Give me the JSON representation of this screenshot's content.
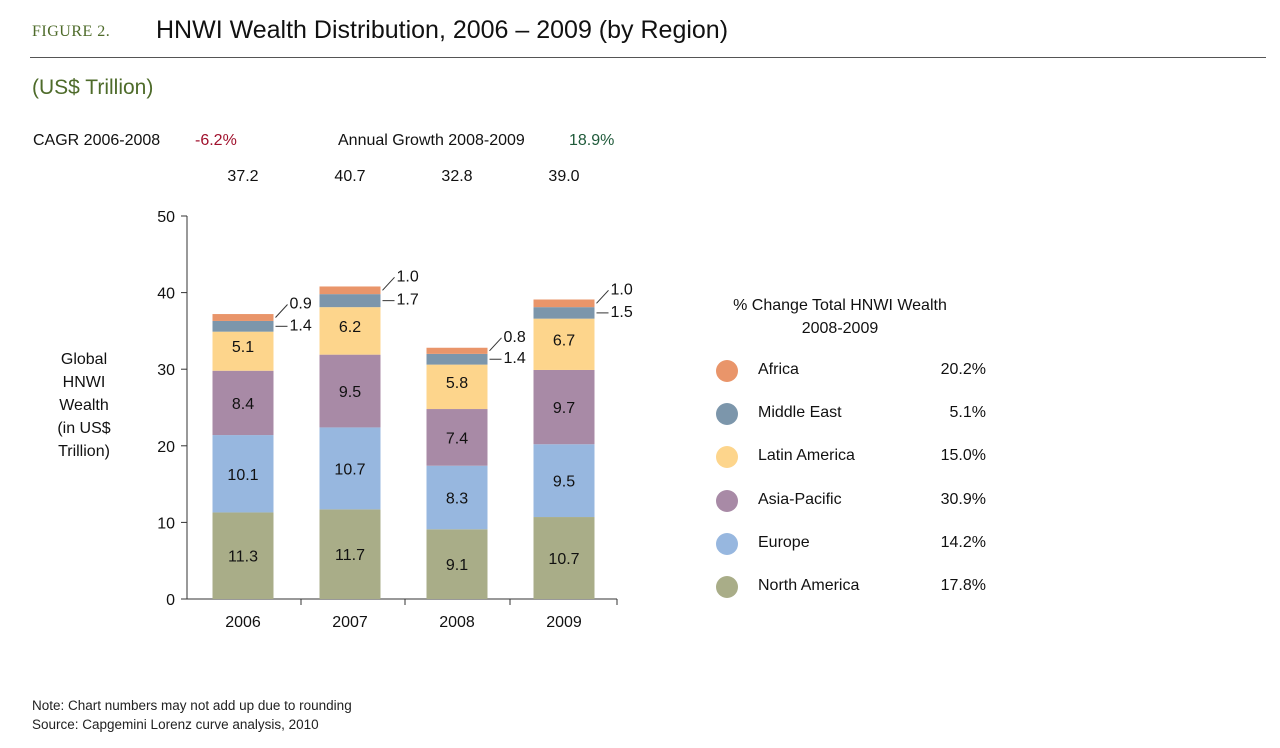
{
  "header": {
    "figure_label": "FIGURE 2.",
    "title": "HNWI Wealth Distribution, 2006 – 2009 (by Region)",
    "units": "(US$ Trillion)"
  },
  "growth": {
    "cagr_label": "CAGR 2006-2008",
    "cagr_value": "-6.2%",
    "annual_label": "Annual Growth  2008-2009",
    "annual_value": "18.9%"
  },
  "legend": {
    "title_line1": "% Change Total HNWI Wealth",
    "title_line2": "2008-2009",
    "items": [
      {
        "name": "Africa",
        "pct": "20.2%"
      },
      {
        "name": "Middle East",
        "pct": "5.1%"
      },
      {
        "name": "Latin America",
        "pct": "15.0%"
      },
      {
        "name": "Asia-Pacific",
        "pct": "30.9%"
      },
      {
        "name": "Europe",
        "pct": "14.2%"
      },
      {
        "name": "North America",
        "pct": "17.8%"
      }
    ]
  },
  "notes": {
    "line1": "Note: Chart numbers may not add up due to rounding",
    "line2": "Source: Capgemini Lorenz curve analysis, 2010"
  },
  "colors": {
    "north_america": "#a9ad88",
    "europe": "#97b7df",
    "asia_pacific": "#a88aa6",
    "latin_america": "#fdd58c",
    "middle_east": "#7c96ab",
    "africa": "#e9956a"
  },
  "chart_data": {
    "type": "bar",
    "stacked": true,
    "title": "HNWI Wealth Distribution, 2006 – 2009 (by Region)",
    "ylabel_lines": [
      "Global",
      "HNWI",
      "Wealth",
      "(in US$",
      "Trillion)"
    ],
    "ylim": [
      0,
      50
    ],
    "yticks": [
      0,
      10,
      20,
      30,
      40,
      50
    ],
    "categories": [
      "2006",
      "2007",
      "2008",
      "2009"
    ],
    "totals": [
      "37.2",
      "40.7",
      "32.8",
      "39.0"
    ],
    "series": [
      {
        "name": "North America",
        "color_key": "north_america",
        "values": [
          11.3,
          11.7,
          9.1,
          10.7
        ]
      },
      {
        "name": "Europe",
        "color_key": "europe",
        "values": [
          10.1,
          10.7,
          8.3,
          9.5
        ]
      },
      {
        "name": "Asia-Pacific",
        "color_key": "asia_pacific",
        "values": [
          8.4,
          9.5,
          7.4,
          9.7
        ]
      },
      {
        "name": "Latin America",
        "color_key": "latin_america",
        "values": [
          5.1,
          6.2,
          5.8,
          6.7
        ]
      },
      {
        "name": "Middle East",
        "color_key": "middle_east",
        "values": [
          1.4,
          1.7,
          1.4,
          1.5
        ]
      },
      {
        "name": "Africa",
        "color_key": "africa",
        "values": [
          0.9,
          1.0,
          0.8,
          1.0
        ]
      }
    ]
  }
}
